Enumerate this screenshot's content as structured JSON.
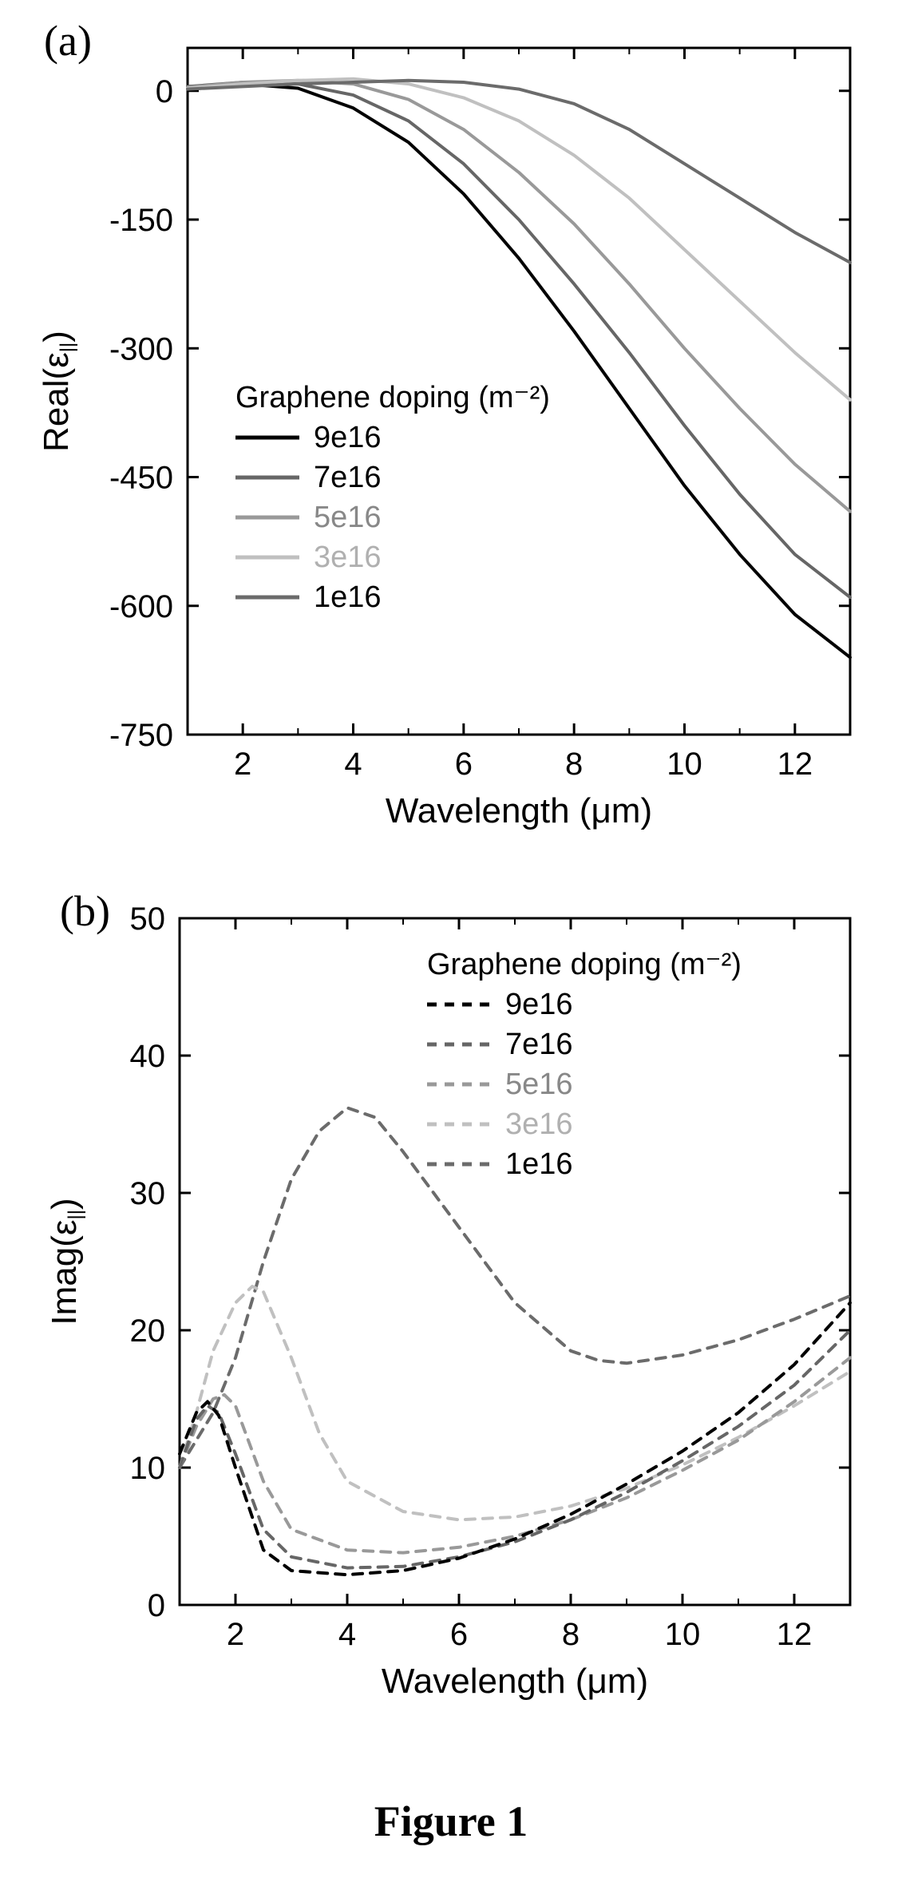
{
  "caption": "Figure 1",
  "panelA": {
    "label": "(a)",
    "type": "line",
    "xlabel": "Wavelength (μm)",
    "ylabel": "Real(ε∥)",
    "xlabel_sub": "||",
    "xlim": [
      1,
      13
    ],
    "ylim": [
      -750,
      50
    ],
    "xtick_step": 2,
    "ytick_step": 150,
    "xticks": [
      2,
      4,
      6,
      8,
      10,
      12
    ],
    "yticks": [
      0,
      -150,
      -300,
      -450,
      -600,
      -750
    ],
    "label_fontsize": 44,
    "tick_fontsize": 40,
    "line_width": 4,
    "axis_color": "#000000",
    "background_color": "#ffffff",
    "legend": {
      "title": "Graphene doping (m⁻²)",
      "title_fontsize": 38,
      "item_fontsize": 38,
      "swatch_length": 80,
      "swatch_width": 5,
      "items": [
        {
          "label": "9e16",
          "color": "#000000"
        },
        {
          "label": "7e16",
          "color": "#666666"
        },
        {
          "label": "5e16",
          "color": "#999999"
        },
        {
          "label": "3e16",
          "color": "#c0c0c0"
        },
        {
          "label": "1e16",
          "color": "#6b6b6b"
        }
      ],
      "position": "inside-lower-left"
    },
    "series": [
      {
        "name": "9e16",
        "color": "#000000",
        "dash": "none",
        "x": [
          1,
          2,
          3,
          4,
          5,
          6,
          7,
          8,
          9,
          10,
          11,
          12,
          13
        ],
        "y": [
          5,
          8,
          3,
          -20,
          -60,
          -120,
          -195,
          -280,
          -370,
          -460,
          -540,
          -610,
          -660
        ]
      },
      {
        "name": "7e16",
        "color": "#666666",
        "dash": "none",
        "x": [
          1,
          2,
          3,
          4,
          5,
          6,
          7,
          8,
          9,
          10,
          11,
          12,
          13
        ],
        "y": [
          5,
          10,
          8,
          -5,
          -35,
          -85,
          -150,
          -225,
          -305,
          -390,
          -470,
          -540,
          -590
        ]
      },
      {
        "name": "5e16",
        "color": "#999999",
        "dash": "none",
        "x": [
          1,
          2,
          3,
          4,
          5,
          6,
          7,
          8,
          9,
          10,
          11,
          12,
          13
        ],
        "y": [
          4,
          10,
          12,
          8,
          -10,
          -45,
          -95,
          -155,
          -225,
          -300,
          -370,
          -435,
          -490
        ]
      },
      {
        "name": "3e16",
        "color": "#c0c0c0",
        "dash": "none",
        "x": [
          1,
          2,
          3,
          4,
          5,
          6,
          7,
          8,
          9,
          10,
          11,
          12,
          13
        ],
        "y": [
          3,
          8,
          12,
          14,
          8,
          -8,
          -35,
          -75,
          -125,
          -185,
          -245,
          -305,
          -360
        ]
      },
      {
        "name": "1e16",
        "color": "#6b6b6b",
        "dash": "none",
        "x": [
          1,
          2,
          3,
          4,
          5,
          6,
          7,
          8,
          9,
          10,
          11,
          12,
          13
        ],
        "y": [
          2,
          5,
          8,
          10,
          12,
          10,
          2,
          -15,
          -45,
          -85,
          -125,
          -165,
          -200
        ]
      }
    ]
  },
  "panelB": {
    "label": "(b)",
    "title_text": "50",
    "type": "line",
    "xlabel": "Wavelength (μm)",
    "ylabel": "Imag(ε∥)",
    "xlim": [
      1,
      13
    ],
    "ylim": [
      0,
      50
    ],
    "xtick_step": 2,
    "ytick_step": 10,
    "xticks": [
      2,
      4,
      6,
      8,
      10,
      12
    ],
    "yticks": [
      0,
      10,
      20,
      30,
      40,
      50
    ],
    "label_fontsize": 44,
    "tick_fontsize": 40,
    "line_width": 4,
    "dash_pattern": "12,10",
    "axis_color": "#000000",
    "background_color": "#ffffff",
    "legend": {
      "title": "Graphene doping (m⁻²)",
      "title_fontsize": 38,
      "item_fontsize": 38,
      "swatch_length": 80,
      "swatch_width": 5,
      "items": [
        {
          "label": "9e16",
          "color": "#000000"
        },
        {
          "label": "7e16",
          "color": "#666666"
        },
        {
          "label": "5e16",
          "color": "#999999"
        },
        {
          "label": "3e16",
          "color": "#c0c0c0"
        },
        {
          "label": "1e16",
          "color": "#6b6b6b"
        }
      ],
      "position": "inside-upper-right"
    },
    "series": [
      {
        "name": "1e16",
        "color": "#6b6b6b",
        "dash": "12,10",
        "x": [
          1,
          1.3,
          1.6,
          2,
          2.5,
          3,
          3.5,
          4,
          4.5,
          5,
          6,
          7,
          8,
          8.5,
          9,
          10,
          11,
          12,
          13
        ],
        "y": [
          10,
          12,
          14,
          18,
          25,
          31,
          34.5,
          36.2,
          35.5,
          33,
          27.5,
          22,
          18.5,
          17.8,
          17.6,
          18.2,
          19.3,
          20.8,
          22.5
        ]
      },
      {
        "name": "3e16",
        "color": "#c0c0c0",
        "dash": "12,10",
        "x": [
          1,
          1.3,
          1.6,
          2,
          2.3,
          2.5,
          3,
          3.5,
          4,
          5,
          6,
          7,
          8,
          9,
          10,
          11,
          12,
          13
        ],
        "y": [
          10,
          14,
          18.5,
          22,
          23.2,
          22.8,
          18,
          12.5,
          9,
          6.8,
          6.2,
          6.4,
          7.2,
          8.5,
          10.2,
          12.2,
          14.5,
          17
        ]
      },
      {
        "name": "5e16",
        "color": "#999999",
        "dash": "12,10",
        "x": [
          1,
          1.3,
          1.6,
          1.8,
          2,
          2.5,
          3,
          4,
          5,
          6,
          7,
          8,
          9,
          10,
          11,
          12,
          13
        ],
        "y": [
          10,
          13,
          15,
          15.3,
          14.5,
          9,
          5.5,
          4,
          3.8,
          4.2,
          5,
          6.2,
          7.8,
          9.8,
          12,
          14.8,
          18
        ]
      },
      {
        "name": "7e16",
        "color": "#666666",
        "dash": "12,10",
        "x": [
          1,
          1.3,
          1.5,
          1.7,
          2,
          2.5,
          3,
          4,
          5,
          6,
          7,
          8,
          9,
          10,
          11,
          12,
          13
        ],
        "y": [
          10,
          13.5,
          14.5,
          14,
          11,
          5.5,
          3.5,
          2.7,
          2.8,
          3.5,
          4.6,
          6.2,
          8.2,
          10.5,
          13,
          16,
          20
        ]
      },
      {
        "name": "9e16",
        "color": "#000000",
        "dash": "12,10",
        "x": [
          1,
          1.3,
          1.5,
          1.7,
          2,
          2.5,
          3,
          4,
          5,
          6,
          7,
          8,
          9,
          10,
          11,
          12,
          13
        ],
        "y": [
          11,
          14,
          14.8,
          13.8,
          10,
          4,
          2.5,
          2.2,
          2.5,
          3.4,
          4.8,
          6.6,
          8.8,
          11.2,
          14,
          17.5,
          22
        ]
      }
    ]
  }
}
